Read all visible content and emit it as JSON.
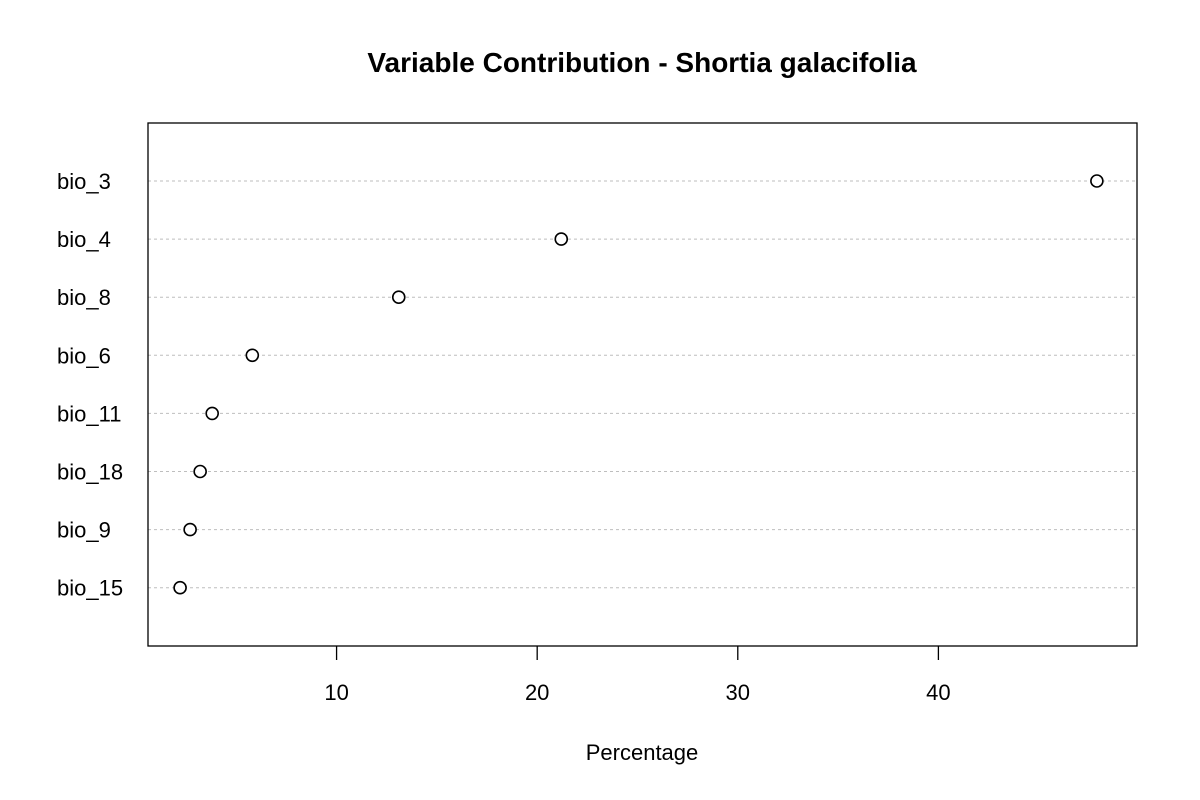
{
  "chart_data": {
    "type": "scatter",
    "subtype": "dotchart",
    "title": "Variable Contribution - Shortia galacifolia",
    "xlabel": "Percentage",
    "ylabel": "",
    "xlim": [
      0.6,
      49.9
    ],
    "x_ticks": [
      10,
      20,
      30,
      40
    ],
    "grid": "horizontal-dashed",
    "legend": "none",
    "categories": [
      "bio_3",
      "bio_4",
      "bio_8",
      "bio_6",
      "bio_11",
      "bio_18",
      "bio_9",
      "bio_15"
    ],
    "values": [
      47.9,
      21.2,
      13.1,
      5.8,
      3.8,
      3.2,
      2.7,
      2.2
    ],
    "colors": {
      "point_stroke": "#000000",
      "point_fill": "#ffffff",
      "grid": "#bebebe",
      "frame": "#000000"
    }
  }
}
